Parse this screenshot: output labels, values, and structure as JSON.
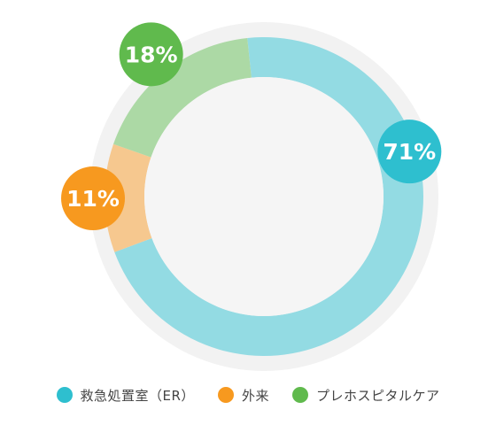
{
  "chart_data": {
    "type": "pie",
    "donut": true,
    "categories": [
      "救急処置室（ER）",
      "外来",
      "プレホスピタルケア"
    ],
    "values": [
      71,
      11,
      18
    ],
    "data_labels": [
      "71%",
      "11%",
      "18%"
    ],
    "colors": {
      "slice": [
        "#93dbe3",
        "#f6c88f",
        "#acd9a5"
      ],
      "bubble": [
        "#2ebfcf",
        "#f7991f",
        "#60ba4d"
      ]
    },
    "title": "",
    "legend_position": "bottom"
  }
}
